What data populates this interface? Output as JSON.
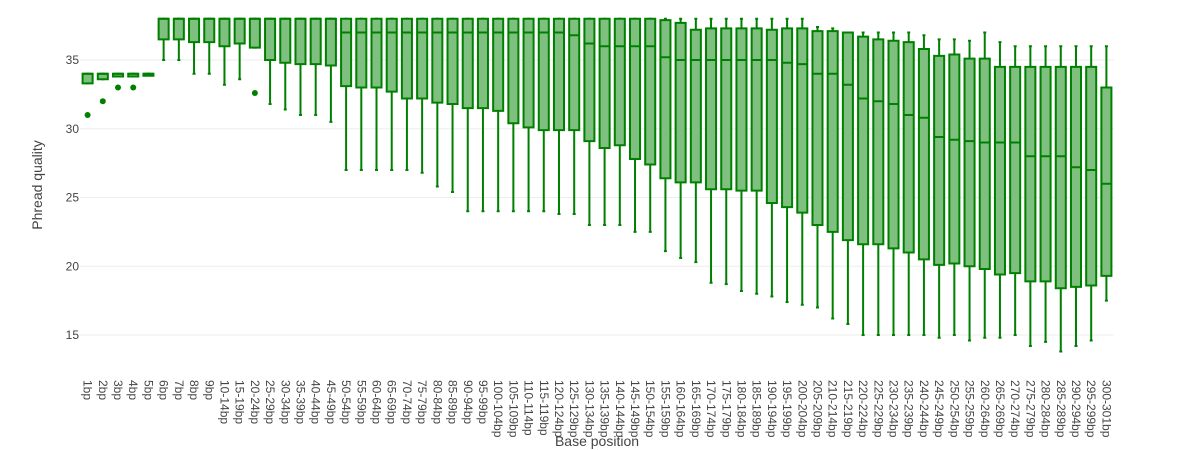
{
  "chart_data": {
    "type": "box",
    "xlabel": "Base position",
    "ylabel": "Phread quality",
    "ylim": [
      12.5,
      38.3
    ],
    "yticks": [
      15,
      20,
      25,
      30,
      35
    ],
    "grid": true,
    "legend": "none",
    "colors": {
      "stroke": "#008000",
      "fill": "#7fbf7f",
      "grid": "#eeeeee",
      "text": "#444444"
    },
    "categories": [
      "1bp",
      "2bp",
      "3bp",
      "4bp",
      "5bp",
      "6bp",
      "7bp",
      "8bp",
      "9bp",
      "10-14bp",
      "15-19bp",
      "20-24bp",
      "25-29bp",
      "30-34bp",
      "35-39bp",
      "40-44bp",
      "45-49bp",
      "50-54bp",
      "55-59bp",
      "60-64bp",
      "65-69bp",
      "70-74bp",
      "75-79bp",
      "80-84bp",
      "85-89bp",
      "90-94bp",
      "95-99bp",
      "100-104bp",
      "105-109bp",
      "110-114bp",
      "115-119bp",
      "120-124bp",
      "125-129bp",
      "130-134bp",
      "135-139bp",
      "140-144bp",
      "145-149bp",
      "150-154bp",
      "155-159bp",
      "160-164bp",
      "165-169bp",
      "170-174bp",
      "175-179bp",
      "180-184bp",
      "185-189bp",
      "190-194bp",
      "195-199bp",
      "200-204bp",
      "205-209bp",
      "210-214bp",
      "215-219bp",
      "220-224bp",
      "225-229bp",
      "230-234bp",
      "235-239bp",
      "240-244bp",
      "245-249bp",
      "250-254bp",
      "255-259bp",
      "260-264bp",
      "265-269bp",
      "270-274bp",
      "275-279bp",
      "280-284bp",
      "285-289bp",
      "290-294bp",
      "295-299bp",
      "300-301bp"
    ],
    "boxes": [
      {
        "low": 33.3,
        "q1": 33.3,
        "median": 34,
        "q3": 34,
        "high": 34,
        "outliers": [
          31
        ]
      },
      {
        "low": 33.6,
        "q1": 33.6,
        "median": 34,
        "q3": 34,
        "high": 34,
        "outliers": [
          32
        ]
      },
      {
        "low": 33.8,
        "q1": 33.8,
        "median": 34,
        "q3": 34,
        "high": 34,
        "outliers": [
          33
        ]
      },
      {
        "low": 33.8,
        "q1": 33.8,
        "median": 34,
        "q3": 34,
        "high": 34,
        "outliers": [
          33
        ]
      },
      {
        "low": 34,
        "q1": 34,
        "median": 34,
        "q3": 34,
        "high": 34,
        "outliers": []
      },
      {
        "low": 35,
        "q1": 36.5,
        "median": 38,
        "q3": 38,
        "high": 38,
        "outliers": []
      },
      {
        "low": 35,
        "q1": 36.5,
        "median": 38,
        "q3": 38,
        "high": 38,
        "outliers": []
      },
      {
        "low": 34,
        "q1": 36.3,
        "median": 38,
        "q3": 38,
        "high": 38,
        "outliers": []
      },
      {
        "low": 34,
        "q1": 36.3,
        "median": 38,
        "q3": 38,
        "high": 38,
        "outliers": []
      },
      {
        "low": 33.2,
        "q1": 36,
        "median": 38,
        "q3": 38,
        "high": 38,
        "outliers": []
      },
      {
        "low": 33.6,
        "q1": 36.2,
        "median": 38,
        "q3": 38,
        "high": 38,
        "outliers": []
      },
      {
        "low": 35.9,
        "q1": 35.9,
        "median": 38,
        "q3": 38,
        "high": 38,
        "outliers": [
          32.6
        ]
      },
      {
        "low": 31.8,
        "q1": 35,
        "median": 38,
        "q3": 38,
        "high": 38,
        "outliers": []
      },
      {
        "low": 31.4,
        "q1": 34.8,
        "median": 38,
        "q3": 38,
        "high": 38,
        "outliers": []
      },
      {
        "low": 31,
        "q1": 34.7,
        "median": 38,
        "q3": 38,
        "high": 38,
        "outliers": []
      },
      {
        "low": 31,
        "q1": 34.7,
        "median": 38,
        "q3": 38,
        "high": 38,
        "outliers": []
      },
      {
        "low": 30.5,
        "q1": 34.6,
        "median": 38,
        "q3": 38,
        "high": 38,
        "outliers": []
      },
      {
        "low": 27,
        "q1": 33.1,
        "median": 37,
        "q3": 38,
        "high": 38,
        "outliers": []
      },
      {
        "low": 27,
        "q1": 33,
        "median": 37,
        "q3": 38,
        "high": 38,
        "outliers": []
      },
      {
        "low": 27,
        "q1": 33,
        "median": 37,
        "q3": 38,
        "high": 38,
        "outliers": []
      },
      {
        "low": 27,
        "q1": 32.7,
        "median": 37,
        "q3": 38,
        "high": 38,
        "outliers": []
      },
      {
        "low": 27,
        "q1": 32.2,
        "median": 37,
        "q3": 38,
        "high": 38,
        "outliers": []
      },
      {
        "low": 26.8,
        "q1": 32.2,
        "median": 37,
        "q3": 38,
        "high": 38,
        "outliers": []
      },
      {
        "low": 25.8,
        "q1": 31.9,
        "median": 37,
        "q3": 38,
        "high": 38,
        "outliers": []
      },
      {
        "low": 25.4,
        "q1": 31.8,
        "median": 37,
        "q3": 38,
        "high": 38,
        "outliers": []
      },
      {
        "low": 24,
        "q1": 31.5,
        "median": 37,
        "q3": 38,
        "high": 38,
        "outliers": []
      },
      {
        "low": 24,
        "q1": 31.5,
        "median": 37,
        "q3": 38,
        "high": 38,
        "outliers": []
      },
      {
        "low": 24,
        "q1": 31.3,
        "median": 37,
        "q3": 38,
        "high": 38,
        "outliers": []
      },
      {
        "low": 24,
        "q1": 30.4,
        "median": 37,
        "q3": 38,
        "high": 38,
        "outliers": []
      },
      {
        "low": 24,
        "q1": 30.1,
        "median": 37,
        "q3": 38,
        "high": 38,
        "outliers": []
      },
      {
        "low": 24,
        "q1": 29.9,
        "median": 37,
        "q3": 38,
        "high": 38,
        "outliers": []
      },
      {
        "low": 23.8,
        "q1": 29.9,
        "median": 37,
        "q3": 38,
        "high": 38,
        "outliers": []
      },
      {
        "low": 23.8,
        "q1": 29.9,
        "median": 36.8,
        "q3": 38,
        "high": 38,
        "outliers": []
      },
      {
        "low": 23,
        "q1": 29.1,
        "median": 36.2,
        "q3": 38,
        "high": 38,
        "outliers": []
      },
      {
        "low": 23,
        "q1": 28.6,
        "median": 36,
        "q3": 38,
        "high": 38,
        "outliers": []
      },
      {
        "low": 23,
        "q1": 28.8,
        "median": 36,
        "q3": 38,
        "high": 38,
        "outliers": []
      },
      {
        "low": 22.5,
        "q1": 27.8,
        "median": 36,
        "q3": 38,
        "high": 38,
        "outliers": []
      },
      {
        "low": 22.5,
        "q1": 27.4,
        "median": 36,
        "q3": 38,
        "high": 38,
        "outliers": []
      },
      {
        "low": 21.1,
        "q1": 26.4,
        "median": 35.2,
        "q3": 37.9,
        "high": 38,
        "outliers": []
      },
      {
        "low": 20.6,
        "q1": 26.1,
        "median": 35,
        "q3": 37.7,
        "high": 38,
        "outliers": []
      },
      {
        "low": 20.3,
        "q1": 26.1,
        "median": 35,
        "q3": 37.2,
        "high": 38,
        "outliers": []
      },
      {
        "low": 18.8,
        "q1": 25.6,
        "median": 35,
        "q3": 37.3,
        "high": 38,
        "outliers": []
      },
      {
        "low": 18.7,
        "q1": 25.6,
        "median": 35,
        "q3": 37.3,
        "high": 38,
        "outliers": []
      },
      {
        "low": 18.2,
        "q1": 25.5,
        "median": 35,
        "q3": 37.3,
        "high": 38,
        "outliers": []
      },
      {
        "low": 18,
        "q1": 25.5,
        "median": 35,
        "q3": 37.3,
        "high": 38,
        "outliers": []
      },
      {
        "low": 17.8,
        "q1": 24.6,
        "median": 35,
        "q3": 37.2,
        "high": 38,
        "outliers": []
      },
      {
        "low": 17.4,
        "q1": 24.3,
        "median": 34.8,
        "q3": 37.3,
        "high": 38,
        "outliers": []
      },
      {
        "low": 17.2,
        "q1": 23.9,
        "median": 34.7,
        "q3": 37.3,
        "high": 38,
        "outliers": []
      },
      {
        "low": 17,
        "q1": 23,
        "median": 34,
        "q3": 37.1,
        "high": 37.4,
        "outliers": []
      },
      {
        "low": 16.2,
        "q1": 22.5,
        "median": 34,
        "q3": 37.1,
        "high": 37.3,
        "outliers": []
      },
      {
        "low": 15.8,
        "q1": 21.9,
        "median": 33.2,
        "q3": 37,
        "high": 37,
        "outliers": []
      },
      {
        "low": 15,
        "q1": 21.6,
        "median": 32.2,
        "q3": 36.7,
        "high": 37,
        "outliers": []
      },
      {
        "low": 15,
        "q1": 21.6,
        "median": 32,
        "q3": 36.5,
        "high": 37,
        "outliers": []
      },
      {
        "low": 15,
        "q1": 21.3,
        "median": 31.8,
        "q3": 36.4,
        "high": 37,
        "outliers": []
      },
      {
        "low": 15,
        "q1": 21,
        "median": 31,
        "q3": 36.3,
        "high": 37,
        "outliers": []
      },
      {
        "low": 15,
        "q1": 20.5,
        "median": 30.8,
        "q3": 35.8,
        "high": 36.8,
        "outliers": []
      },
      {
        "low": 14.8,
        "q1": 20.1,
        "median": 29.4,
        "q3": 35.3,
        "high": 36.5,
        "outliers": []
      },
      {
        "low": 15,
        "q1": 20.2,
        "median": 29.2,
        "q3": 35.4,
        "high": 36.5,
        "outliers": []
      },
      {
        "low": 14.6,
        "q1": 20,
        "median": 29.1,
        "q3": 35.1,
        "high": 36.4,
        "outliers": []
      },
      {
        "low": 14.8,
        "q1": 19.8,
        "median": 29,
        "q3": 35.1,
        "high": 37,
        "outliers": []
      },
      {
        "low": 14.8,
        "q1": 19.4,
        "median": 29,
        "q3": 34.5,
        "high": 36.3,
        "outliers": []
      },
      {
        "low": 15,
        "q1": 19.5,
        "median": 29,
        "q3": 34.5,
        "high": 36,
        "outliers": []
      },
      {
        "low": 14.2,
        "q1": 18.9,
        "median": 28,
        "q3": 34.5,
        "high": 36,
        "outliers": []
      },
      {
        "low": 14.5,
        "q1": 18.9,
        "median": 28,
        "q3": 34.5,
        "high": 36,
        "outliers": []
      },
      {
        "low": 13.8,
        "q1": 18.4,
        "median": 28,
        "q3": 34.5,
        "high": 36,
        "outliers": []
      },
      {
        "low": 14.2,
        "q1": 18.5,
        "median": 27.2,
        "q3": 34.5,
        "high": 36,
        "outliers": []
      },
      {
        "low": 14.6,
        "q1": 18.6,
        "median": 27,
        "q3": 34.5,
        "high": 36,
        "outliers": []
      },
      {
        "low": 17.5,
        "q1": 19.3,
        "median": 26,
        "q3": 33,
        "high": 36,
        "outliers": []
      }
    ]
  }
}
